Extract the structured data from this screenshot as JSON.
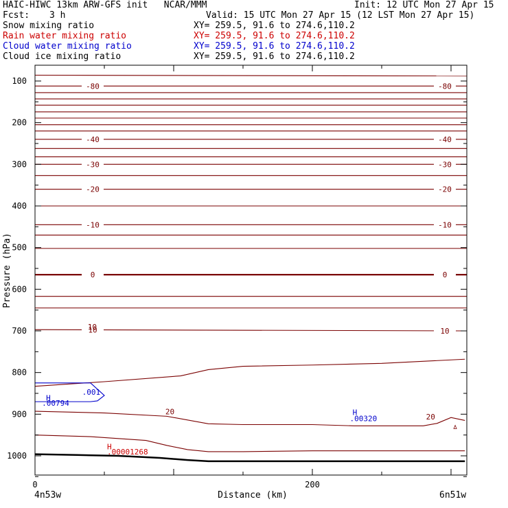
{
  "header": {
    "title_left": "HAIC-HIWC 13km ARW-GFS init   NCAR/MMM",
    "init": "Init: 12 UTC Mon 27 Apr 15",
    "fcst_label": "Fcst:",
    "fcst_value": "3 h",
    "valid": "Valid: 15 UTC Mon 27 Apr 15 (12 LST Mon 27 Apr 15)",
    "fields": [
      {
        "name": "Snow mixing ratio",
        "xy": "XY= 259.5, 91.6 to 274.6,110.2",
        "color": "#000000"
      },
      {
        "name": "Rain water mixing ratio",
        "xy": "XY= 259.5, 91.6 to 274.6,110.2",
        "color": "#cc0000"
      },
      {
        "name": "Cloud water mixing ratio",
        "xy": "XY= 259.5, 91.6 to 274.6,110.2",
        "color": "#0000cc"
      },
      {
        "name": "Cloud ice mixing ratio",
        "xy": "XY= 259.5, 91.6 to 274.6,110.2",
        "color": "#000000"
      }
    ]
  },
  "chart_data": {
    "type": "line",
    "title": "",
    "xlabel": "Distance (km)",
    "ylabel": "Pressure (hPa)",
    "xlim": [
      0,
      310
    ],
    "ylim": [
      1050,
      75
    ],
    "x_ticks": [
      0,
      50,
      100,
      150,
      200,
      250,
      300
    ],
    "x_tick_labels": [
      {
        "x": 0,
        "label": "0"
      },
      {
        "x": 200,
        "label": "200"
      }
    ],
    "y_ticks": [
      100,
      200,
      300,
      400,
      500,
      600,
      700,
      800,
      900,
      1000
    ],
    "y_tick_labels": [
      "100",
      "200",
      "300",
      "400",
      "500",
      "600",
      "700",
      "800",
      "900",
      "1000"
    ],
    "endpoint_left": "4n53w",
    "endpoint_right": "6n51w",
    "isotherm_color": "#7a0000",
    "isotherms": [
      {
        "p_left": 86,
        "p_right": 88
      },
      {
        "p_left": 112,
        "p_right": 112,
        "label": "-80"
      },
      {
        "p_left": 128,
        "p_right": 128
      },
      {
        "p_left": 143,
        "p_right": 143
      },
      {
        "p_left": 158,
        "p_right": 158
      },
      {
        "p_left": 174,
        "p_right": 174
      },
      {
        "p_left": 189,
        "p_right": 189
      },
      {
        "p_left": 205,
        "p_right": 205
      },
      {
        "p_left": 220,
        "p_right": 220
      },
      {
        "p_left": 240,
        "p_right": 240,
        "label": "-40"
      },
      {
        "p_left": 262,
        "p_right": 262
      },
      {
        "p_left": 282,
        "p_right": 282,
        "label_interior": ""
      },
      {
        "p_left": 300,
        "p_right": 300,
        "label": "-30"
      },
      {
        "p_left": 327,
        "p_right": 327
      },
      {
        "p_left": 360,
        "p_right": 360,
        "label": "-20"
      },
      {
        "p_left": 400,
        "p_right": 400
      },
      {
        "p_left": 445,
        "p_right": 445,
        "label": "-10"
      },
      {
        "p_left": 470,
        "p_right": 470
      },
      {
        "p_left": 502,
        "p_right": 502
      },
      {
        "p_left": 565,
        "p_right": 565,
        "label": "0",
        "bold": true
      },
      {
        "p_left": 617,
        "p_right": 617
      },
      {
        "p_left": 645,
        "p_right": 645
      },
      {
        "p_left": 697,
        "p_right": 700,
        "label": "10"
      }
    ],
    "lower_isotherms": [
      {
        "x": [
          0,
          50,
          105,
          125,
          150,
          200,
          250,
          310
        ],
        "p": [
          833,
          822,
          808,
          793,
          785,
          782,
          778,
          768
        ]
      },
      {
        "x": [
          0,
          50,
          95,
          125,
          150,
          200,
          230,
          280,
          290,
          300,
          310
        ],
        "p": [
          893,
          897,
          905,
          923,
          925,
          925,
          928,
          928,
          922,
          908,
          915
        ],
        "label": "20"
      },
      {
        "x": [
          0,
          40,
          80,
          95,
          110,
          125,
          150,
          200,
          310
        ],
        "p": [
          950,
          954,
          963,
          975,
          985,
          990,
          990,
          988,
          988
        ]
      }
    ],
    "ground": {
      "x": [
        0,
        30,
        60,
        90,
        110,
        125,
        150,
        200,
        250,
        310
      ],
      "p": [
        996,
        998,
        1000,
        1005,
        1010,
        1013,
        1013,
        1013,
        1013,
        1013
      ]
    },
    "annotations": [
      {
        "text": "H",
        "x": 8,
        "p": 867,
        "color": "#0000cc"
      },
      {
        "text": ".00794",
        "x": 5,
        "p": 880,
        "color": "#0000cc"
      },
      {
        "text": ".001",
        "x": 34,
        "p": 853,
        "color": "#0000cc"
      },
      {
        "text": "H",
        "x": 52,
        "p": 984,
        "color": "#cc0000"
      },
      {
        "text": ".00001268",
        "x": 52,
        "p": 997,
        "color": "#cc0000"
      },
      {
        "text": "H",
        "x": 229,
        "p": 902,
        "color": "#0000cc"
      },
      {
        "text": ".00320",
        "x": 227,
        "p": 917,
        "color": "#0000cc"
      },
      {
        "text": "20",
        "x": 282,
        "p": 913,
        "color": "#7a0000"
      },
      {
        "text": "20",
        "x": 94,
        "p": 900,
        "color": "#7a0000"
      },
      {
        "text": "10",
        "x": 38,
        "p": 697,
        "color": "#7a0000"
      }
    ],
    "cloud_water_contour": {
      "x": [
        0,
        40,
        45,
        50,
        45,
        40,
        0
      ],
      "p": [
        825,
        825,
        840,
        855,
        868,
        870,
        870
      ],
      "color": "#0000cc"
    }
  }
}
